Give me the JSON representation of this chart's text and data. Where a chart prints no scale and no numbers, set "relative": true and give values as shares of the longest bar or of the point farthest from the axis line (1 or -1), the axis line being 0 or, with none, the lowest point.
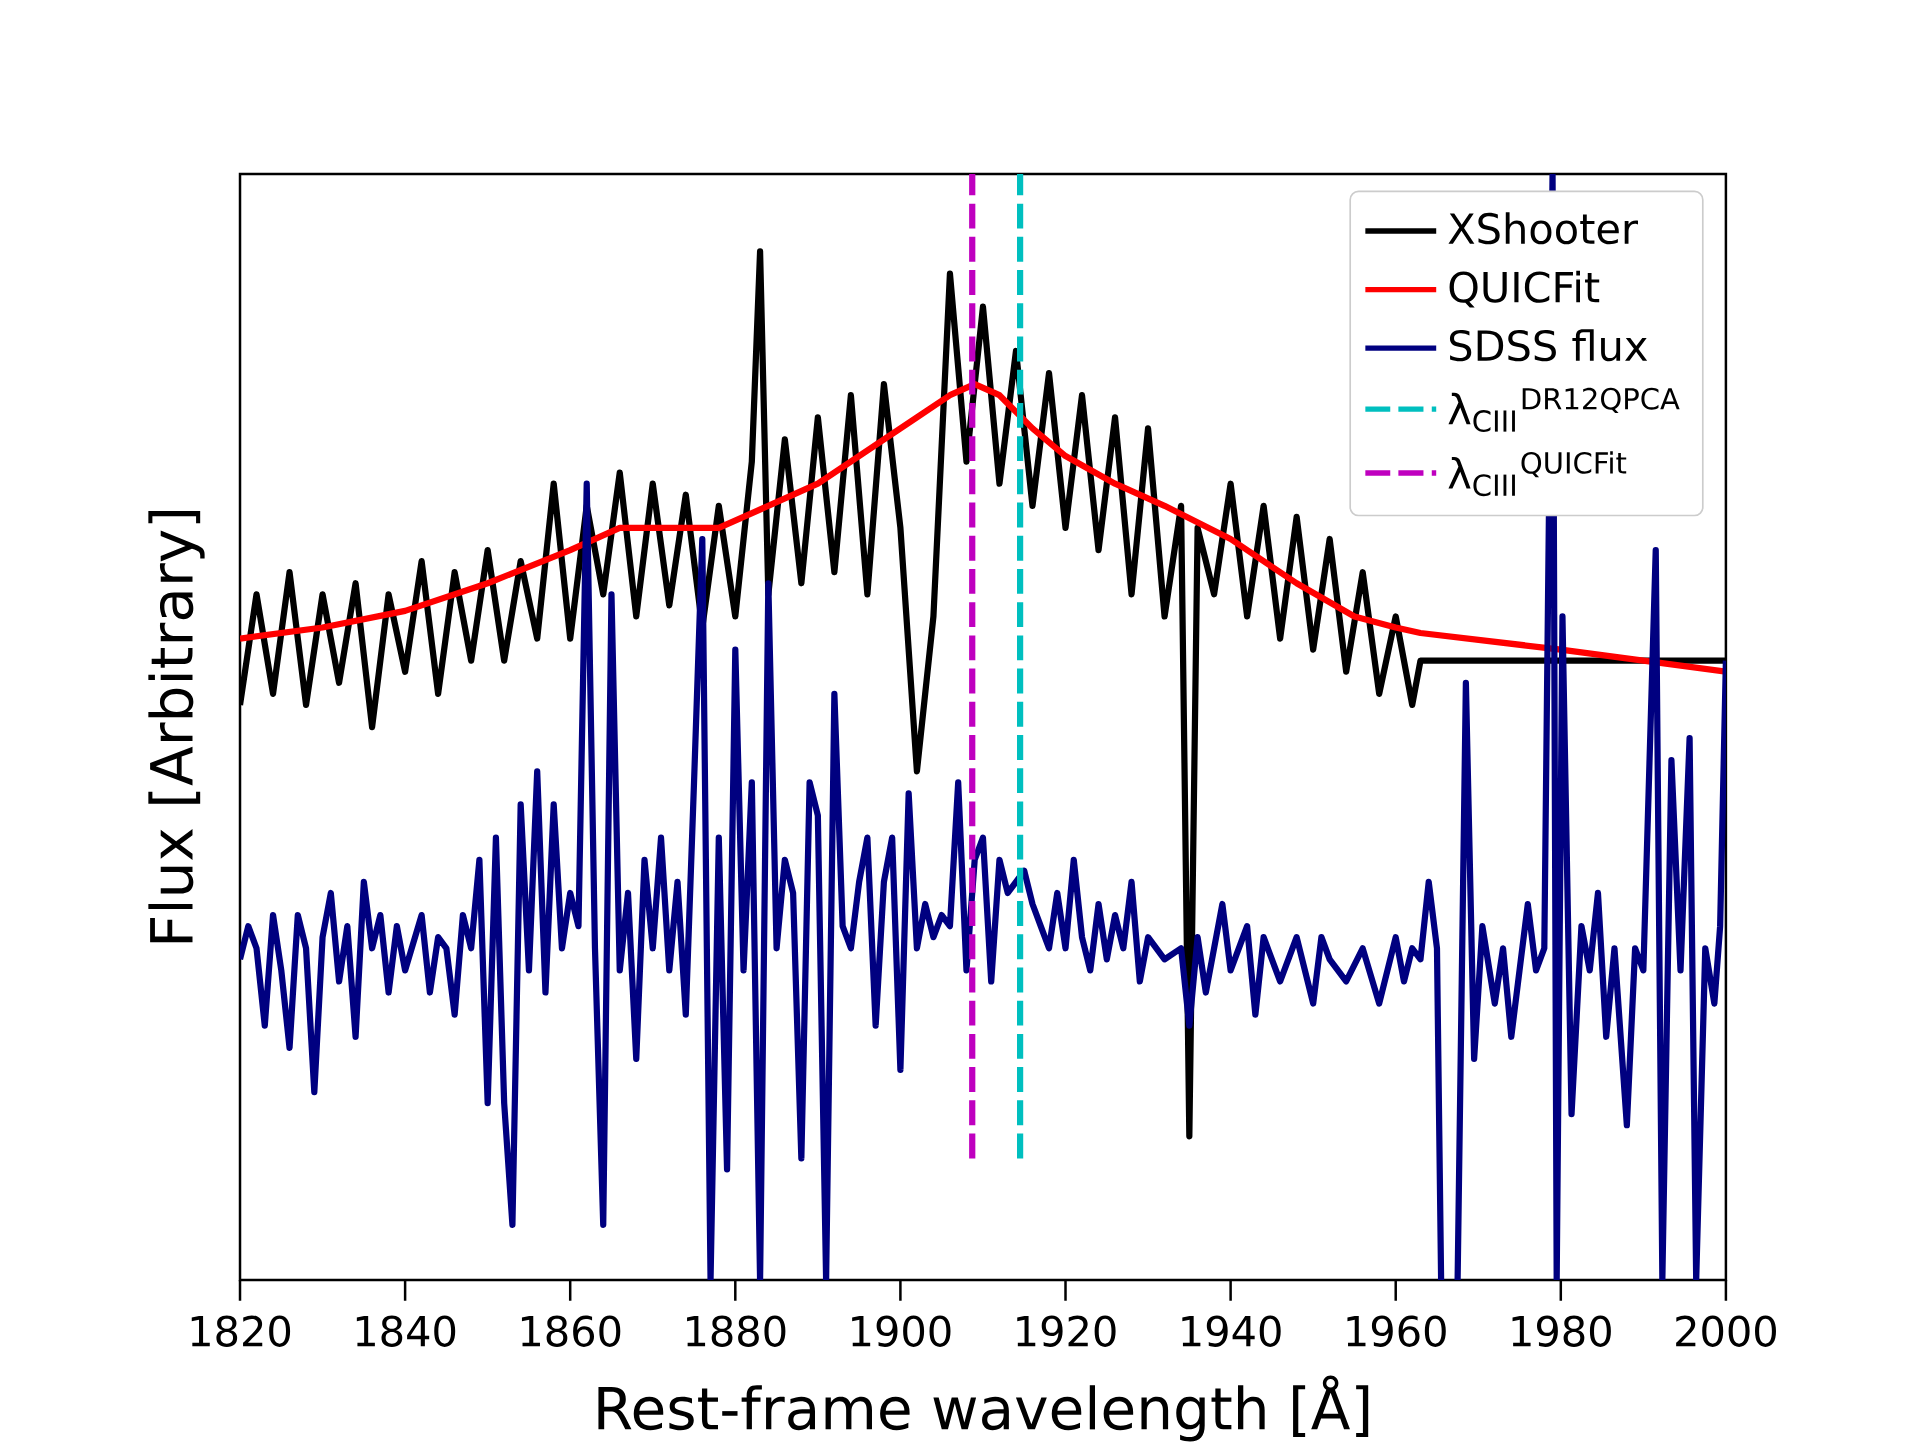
{
  "chart_data": {
    "type": "line",
    "xlabel": "Rest-frame wavelength [Å]",
    "ylabel": "Flux [Arbitrary]",
    "relative": true,
    "xlim": [
      1820,
      2000
    ],
    "xticks": [
      1820,
      1840,
      1860,
      1880,
      1900,
      1920,
      1940,
      1960,
      1980,
      2000
    ],
    "tick_labels": "x",
    "legend": "top right",
    "series": [
      {
        "name": "XShooter",
        "color": "#000000",
        "x": [
          1820,
          1822,
          1824,
          1826,
          1828,
          1830,
          1832,
          1834,
          1836,
          1838,
          1840,
          1842,
          1844,
          1846,
          1848,
          1850,
          1852,
          1854,
          1856,
          1858,
          1860,
          1862,
          1864,
          1866,
          1868,
          1870,
          1872,
          1874,
          1876,
          1878,
          1880,
          1882,
          1883,
          1884,
          1886,
          1888,
          1890,
          1892,
          1894,
          1896,
          1898,
          1900,
          1902,
          1904,
          1906,
          1908,
          1910,
          1912,
          1914,
          1916,
          1918,
          1920,
          1922,
          1924,
          1926,
          1928,
          1930,
          1932,
          1934,
          1935,
          1936,
          1938,
          1940,
          1942,
          1944,
          1946,
          1948,
          1950,
          1952,
          1954,
          1956,
          1958,
          1960,
          1962,
          1963,
          2000
        ],
        "values": [
          0.52,
          0.62,
          0.53,
          0.64,
          0.52,
          0.62,
          0.54,
          0.63,
          0.5,
          0.62,
          0.55,
          0.65,
          0.53,
          0.64,
          0.56,
          0.66,
          0.56,
          0.65,
          0.58,
          0.72,
          0.58,
          0.7,
          0.62,
          0.73,
          0.6,
          0.72,
          0.61,
          0.71,
          0.59,
          0.7,
          0.6,
          0.74,
          0.93,
          0.62,
          0.76,
          0.63,
          0.78,
          0.64,
          0.8,
          0.62,
          0.81,
          0.68,
          0.46,
          0.6,
          0.91,
          0.74,
          0.88,
          0.72,
          0.84,
          0.7,
          0.82,
          0.68,
          0.8,
          0.66,
          0.78,
          0.62,
          0.77,
          0.6,
          0.7,
          0.13,
          0.68,
          0.62,
          0.72,
          0.6,
          0.7,
          0.58,
          0.69,
          0.57,
          0.67,
          0.55,
          0.64,
          0.53,
          0.6,
          0.52,
          0.56,
          0.56
        ]
      },
      {
        "name": "QUICFit",
        "color": "#ff0000",
        "x": [
          1820,
          1830,
          1840,
          1850,
          1860,
          1866,
          1872,
          1878,
          1884,
          1890,
          1896,
          1902,
          1906,
          1909,
          1912,
          1916,
          1920,
          1926,
          1932,
          1940,
          1948,
          1955,
          1960,
          1963,
          1980,
          2000
        ],
        "values": [
          0.58,
          0.59,
          0.605,
          0.63,
          0.66,
          0.68,
          0.68,
          0.68,
          0.7,
          0.72,
          0.75,
          0.78,
          0.8,
          0.81,
          0.8,
          0.77,
          0.745,
          0.72,
          0.7,
          0.67,
          0.63,
          0.6,
          0.59,
          0.585,
          0.57,
          0.55
        ]
      },
      {
        "name": "SDSS flux",
        "color": "#000080",
        "x": [
          1820,
          1821,
          1822,
          1823,
          1824,
          1825,
          1826,
          1827,
          1828,
          1829,
          1830,
          1831,
          1832,
          1833,
          1834,
          1835,
          1836,
          1837,
          1838,
          1839,
          1840,
          1842,
          1843,
          1844,
          1845,
          1846,
          1847,
          1848,
          1849,
          1850,
          1851,
          1852,
          1853,
          1854,
          1855,
          1856,
          1857,
          1858,
          1859,
          1860,
          1861,
          1862,
          1863,
          1864,
          1865,
          1866,
          1867,
          1868,
          1869,
          1870,
          1871,
          1872,
          1873,
          1874,
          1875,
          1876,
          1877,
          1878,
          1879,
          1880,
          1881,
          1882,
          1883,
          1884,
          1885,
          1886,
          1887,
          1888,
          1889,
          1890,
          1891,
          1892,
          1893,
          1894,
          1895,
          1896,
          1897,
          1898,
          1899,
          1900,
          1901,
          1902,
          1903,
          1904,
          1905,
          1906,
          1907,
          1908,
          1909,
          1910,
          1911,
          1912,
          1913,
          1914,
          1915,
          1916,
          1917,
          1918,
          1919,
          1920,
          1921,
          1922,
          1923,
          1924,
          1925,
          1926,
          1927,
          1928,
          1929,
          1930,
          1932,
          1934,
          1935,
          1936,
          1937,
          1938,
          1939,
          1940,
          1942,
          1943,
          1944,
          1946,
          1948,
          1950,
          1951,
          1952,
          1954,
          1956,
          1958,
          1960,
          1961,
          1962,
          1963,
          1964,
          1965,
          1965.5,
          1966.5,
          1967.5,
          1968.5,
          1969.5,
          1970.5,
          1972,
          1973,
          1974,
          1975,
          1976,
          1977,
          1978,
          1979,
          1979.5,
          1980.2,
          1981.3,
          1982.5,
          1983.5,
          1984.5,
          1985.5,
          1986.5,
          1988,
          1989,
          1990,
          1991.5,
          1992.3,
          1993.4,
          1994.5,
          1995.6,
          1996.4,
          1997.5,
          1998.6,
          1999.3,
          2000
        ],
        "values": [
          0.29,
          0.32,
          0.3,
          0.23,
          0.33,
          0.28,
          0.21,
          0.33,
          0.3,
          0.17,
          0.31,
          0.35,
          0.27,
          0.32,
          0.22,
          0.36,
          0.3,
          0.33,
          0.26,
          0.32,
          0.28,
          0.33,
          0.26,
          0.31,
          0.3,
          0.24,
          0.33,
          0.3,
          0.38,
          0.16,
          0.4,
          0.16,
          0.05,
          0.43,
          0.28,
          0.46,
          0.26,
          0.43,
          0.3,
          0.35,
          0.32,
          0.72,
          0.3,
          0.05,
          0.62,
          0.28,
          0.35,
          0.2,
          0.38,
          0.3,
          0.4,
          0.28,
          0.36,
          0.24,
          0.45,
          0.67,
          0.0,
          0.4,
          0.1,
          0.57,
          0.28,
          0.45,
          0.0,
          0.63,
          0.3,
          0.38,
          0.35,
          0.11,
          0.45,
          0.42,
          0.0,
          0.53,
          0.32,
          0.3,
          0.36,
          0.4,
          0.23,
          0.36,
          0.4,
          0.19,
          0.44,
          0.3,
          0.34,
          0.31,
          0.33,
          0.32,
          0.45,
          0.28,
          0.38,
          0.4,
          0.27,
          0.38,
          0.35,
          0.36,
          0.37,
          0.34,
          0.32,
          0.3,
          0.35,
          0.3,
          0.38,
          0.31,
          0.28,
          0.34,
          0.29,
          0.33,
          0.3,
          0.36,
          0.27,
          0.31,
          0.29,
          0.3,
          0.23,
          0.31,
          0.26,
          0.3,
          0.34,
          0.28,
          0.32,
          0.24,
          0.31,
          0.27,
          0.31,
          0.25,
          0.31,
          0.29,
          0.27,
          0.3,
          0.25,
          0.31,
          0.27,
          0.3,
          0.29,
          0.36,
          0.3,
          0.0,
          null,
          0.0,
          0.54,
          0.2,
          0.32,
          0.25,
          0.3,
          0.22,
          0.28,
          0.34,
          0.28,
          0.3,
          1.0,
          0.0,
          0.6,
          0.15,
          0.32,
          0.28,
          0.35,
          0.22,
          0.3,
          0.14,
          0.3,
          0.28,
          0.66,
          0.0,
          0.47,
          0.28,
          0.49,
          0.0,
          0.3,
          0.25,
          0.32,
          0.56
        ]
      },
      {
        "name": "λ$_{CIII}$$^{DR12QPCA}$",
        "color": "#00bfbf",
        "line_style": "dashed",
        "x": [
          1914.5,
          1914.5
        ],
        "values": [
          0.11,
          1.0
        ]
      },
      {
        "name": "λ$_{CIII}$$^{QUICFit}$",
        "color": "#bf00bf",
        "line_style": "dashed",
        "x": [
          1908.7,
          1908.7
        ],
        "values": [
          0.11,
          1.0
        ]
      }
    ]
  }
}
